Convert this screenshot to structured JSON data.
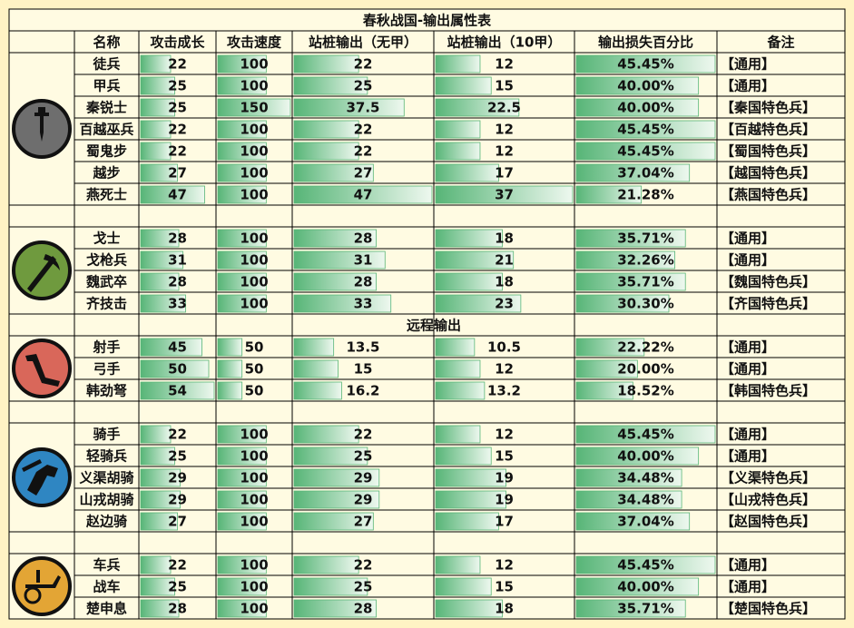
{
  "table": {
    "title": "春秋战国-输出属性表",
    "header": [
      "名称",
      "攻击成长",
      "攻击速度",
      "站桩输出（无甲）",
      "站桩输出（10甲）",
      "输出损失百分比",
      "备注"
    ],
    "groups": [
      {
        "rows": [
          {
            "name": "徒兵",
            "growth": 22,
            "speed": 100,
            "dps0": 22,
            "dps10": 12,
            "loss": {
              "value": 45.45,
              "label": "45.45%"
            },
            "note": "【通用】"
          },
          {
            "name": "甲兵",
            "growth": 25,
            "speed": 100,
            "dps0": 25,
            "dps10": 15,
            "loss": {
              "value": 40.0,
              "label": "40.00%"
            },
            "note": "【通用】"
          },
          {
            "name": "秦锐士",
            "growth": 25,
            "speed": 150,
            "dps0": 37.5,
            "dps10": 22.5,
            "loss": {
              "value": 40.0,
              "label": "40.00%"
            },
            "note": "【秦国特色兵】"
          },
          {
            "name": "百越巫兵",
            "growth": 22,
            "speed": 100,
            "dps0": 22,
            "dps10": 12,
            "loss": {
              "value": 45.45,
              "label": "45.45%"
            },
            "note": "【百越特色兵】"
          },
          {
            "name": "蜀鬼步",
            "growth": 22,
            "speed": 100,
            "dps0": 22,
            "dps10": 12,
            "loss": {
              "value": 45.45,
              "label": "45.45%"
            },
            "note": "【蜀国特色兵】"
          },
          {
            "name": "越步",
            "growth": 27,
            "speed": 100,
            "dps0": 27,
            "dps10": 17,
            "loss": {
              "value": 37.04,
              "label": "37.04%"
            },
            "note": "【越国特色兵】"
          },
          {
            "name": "燕死士",
            "growth": 47,
            "speed": 100,
            "dps0": 47,
            "dps10": 37,
            "loss": {
              "value": 21.28,
              "label": "21.28%"
            },
            "note": "【燕国特色兵】"
          }
        ]
      },
      {
        "rows": [
          {
            "name": "戈士",
            "growth": 28,
            "speed": 100,
            "dps0": 28,
            "dps10": 18,
            "loss": {
              "value": 35.71,
              "label": "35.71%"
            },
            "note": "【通用】"
          },
          {
            "name": "戈枪兵",
            "growth": 31,
            "speed": 100,
            "dps0": 31,
            "dps10": 21,
            "loss": {
              "value": 32.26,
              "label": "32.26%"
            },
            "note": "【通用】"
          },
          {
            "name": "魏武卒",
            "growth": 28,
            "speed": 100,
            "dps0": 28,
            "dps10": 18,
            "loss": {
              "value": 35.71,
              "label": "35.71%"
            },
            "note": "【魏国特色兵】"
          },
          {
            "name": "齐技击",
            "growth": 33,
            "speed": 100,
            "dps0": 33,
            "dps10": 23,
            "loss": {
              "value": 30.3,
              "label": "30.30%"
            },
            "note": "【齐国特色兵】"
          }
        ]
      },
      {
        "heading": "远程输出",
        "rows": [
          {
            "name": "射手",
            "growth": 45,
            "speed": 50,
            "dps0": 13.5,
            "dps10": 10.5,
            "loss": {
              "value": 22.22,
              "label": "22.22%"
            },
            "note": "【通用】"
          },
          {
            "name": "弓手",
            "growth": 50,
            "speed": 50,
            "dps0": 15,
            "dps10": 12,
            "loss": {
              "value": 20.0,
              "label": "20.00%"
            },
            "note": "【通用】"
          },
          {
            "name": "韩劲弩",
            "growth": 54,
            "speed": 50,
            "dps0": 16.2,
            "dps10": 13.2,
            "loss": {
              "value": 18.52,
              "label": "18.52%"
            },
            "note": "【韩国特色兵】"
          }
        ]
      },
      {
        "rows": [
          {
            "name": "骑手",
            "growth": 22,
            "speed": 100,
            "dps0": 22,
            "dps10": 12,
            "loss": {
              "value": 45.45,
              "label": "45.45%"
            },
            "note": "【通用】"
          },
          {
            "name": "轻骑兵",
            "growth": 25,
            "speed": 100,
            "dps0": 25,
            "dps10": 15,
            "loss": {
              "value": 40.0,
              "label": "40.00%"
            },
            "note": "【通用】"
          },
          {
            "name": "义渠胡骑",
            "growth": 29,
            "speed": 100,
            "dps0": 29,
            "dps10": 19,
            "loss": {
              "value": 34.48,
              "label": "34.48%"
            },
            "note": "【义渠特色兵】"
          },
          {
            "name": "山戎胡骑",
            "growth": 29,
            "speed": 100,
            "dps0": 29,
            "dps10": 19,
            "loss": {
              "value": 34.48,
              "label": "34.48%"
            },
            "note": "【山戎特色兵】"
          },
          {
            "name": "赵边骑",
            "growth": 27,
            "speed": 100,
            "dps0": 27,
            "dps10": 17,
            "loss": {
              "value": 37.04,
              "label": "37.04%"
            },
            "note": "【赵国特色兵】"
          }
        ]
      },
      {
        "rows": [
          {
            "name": "车兵",
            "growth": 22,
            "speed": 100,
            "dps0": 22,
            "dps10": 12,
            "loss": {
              "value": 45.45,
              "label": "45.45%"
            },
            "note": "【通用】"
          },
          {
            "name": "战车",
            "growth": 25,
            "speed": 100,
            "dps0": 25,
            "dps10": 15,
            "loss": {
              "value": 40.0,
              "label": "40.00%"
            },
            "note": "【通用】"
          },
          {
            "name": "楚申息",
            "growth": 28,
            "speed": 100,
            "dps0": 28,
            "dps10": 18,
            "loss": {
              "value": 35.71,
              "label": "35.71%"
            },
            "note": "【楚国特色兵】"
          }
        ]
      }
    ]
  }
}
